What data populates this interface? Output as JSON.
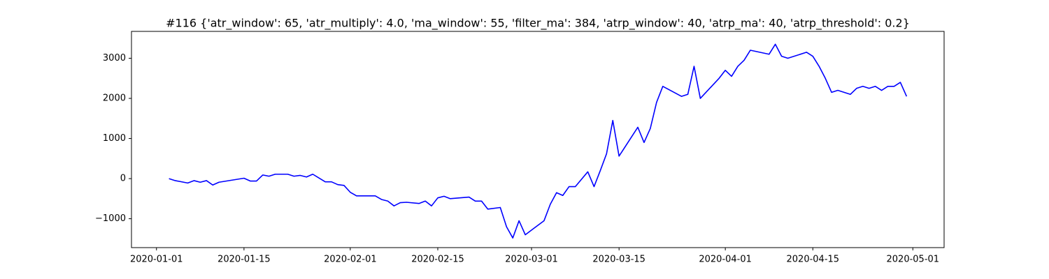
{
  "chart_data": {
    "type": "line",
    "title": "#116 {'atr_window': 65, 'atr_multiply': 4.0, 'ma_window': 55, 'filter_ma': 384, 'atrp_window': 40, 'atrp_ma': 40, 'atrp_threshold': 0.2}",
    "x": [
      "2020-01-03",
      "2020-01-04",
      "2020-01-06",
      "2020-01-07",
      "2020-01-08",
      "2020-01-09",
      "2020-01-10",
      "2020-01-11",
      "2020-01-15",
      "2020-01-16",
      "2020-01-17",
      "2020-01-18",
      "2020-01-19",
      "2020-01-20",
      "2020-01-22",
      "2020-01-23",
      "2020-01-24",
      "2020-01-25",
      "2020-01-26",
      "2020-01-28",
      "2020-01-29",
      "2020-01-30",
      "2020-01-31",
      "2020-02-01",
      "2020-02-02",
      "2020-02-05",
      "2020-02-06",
      "2020-02-07",
      "2020-02-08",
      "2020-02-09",
      "2020-02-10",
      "2020-02-12",
      "2020-02-13",
      "2020-02-14",
      "2020-02-15",
      "2020-02-16",
      "2020-02-17",
      "2020-02-20",
      "2020-02-21",
      "2020-02-22",
      "2020-02-23",
      "2020-02-25",
      "2020-02-26",
      "2020-02-27",
      "2020-02-28",
      "2020-02-29",
      "2020-03-03",
      "2020-03-04",
      "2020-03-05",
      "2020-03-06",
      "2020-03-07",
      "2020-03-08",
      "2020-03-10",
      "2020-03-11",
      "2020-03-12",
      "2020-03-13",
      "2020-03-14",
      "2020-03-15",
      "2020-03-18",
      "2020-03-19",
      "2020-03-20",
      "2020-03-21",
      "2020-03-22",
      "2020-03-25",
      "2020-03-26",
      "2020-03-27",
      "2020-03-28",
      "2020-03-31",
      "2020-04-01",
      "2020-04-02",
      "2020-04-03",
      "2020-04-04",
      "2020-04-05",
      "2020-04-08",
      "2020-04-09",
      "2020-04-10",
      "2020-04-11",
      "2020-04-14",
      "2020-04-15",
      "2020-04-16",
      "2020-04-17",
      "2020-04-18",
      "2020-04-19",
      "2020-04-21",
      "2020-04-22",
      "2020-04-23",
      "2020-04-24",
      "2020-04-25",
      "2020-04-26",
      "2020-04-27",
      "2020-04-28",
      "2020-04-29",
      "2020-04-30"
    ],
    "series": [
      {
        "color": "#0000ff",
        "values": [
          0,
          -50,
          -110,
          -50,
          -90,
          -50,
          -160,
          -90,
          10,
          -60,
          -60,
          90,
          60,
          110,
          110,
          60,
          80,
          40,
          110,
          -80,
          -80,
          -150,
          -170,
          -340,
          -430,
          -430,
          -520,
          -560,
          -680,
          -600,
          -590,
          -620,
          -560,
          -680,
          -480,
          -440,
          -500,
          -460,
          -560,
          -560,
          -760,
          -720,
          -1200,
          -1480,
          -1050,
          -1400,
          -1050,
          -640,
          -350,
          -420,
          -200,
          -200,
          170,
          -200,
          200,
          620,
          1450,
          560,
          1280,
          900,
          1250,
          1900,
          2300,
          2050,
          2100,
          2800,
          2000,
          2500,
          2700,
          2550,
          2800,
          2950,
          3200,
          3100,
          3350,
          3050,
          3000,
          3150,
          3050,
          2800,
          2500,
          2150,
          2200,
          2100,
          2250,
          2300,
          2250,
          2300,
          2200,
          2300,
          2300,
          2400,
          2050
        ]
      }
    ],
    "xlim": [
      "2019-12-28",
      "2020-05-06"
    ],
    "xticks": [
      "2020-01-01",
      "2020-01-15",
      "2020-02-01",
      "2020-02-15",
      "2020-03-01",
      "2020-03-15",
      "2020-04-01",
      "2020-04-15",
      "2020-05-01"
    ],
    "ylim": [
      -1720,
      3670
    ],
    "yticks": [
      {
        "value": -1000,
        "label": "−1000"
      },
      0,
      1000,
      2000,
      3000
    ],
    "grid": false
  }
}
